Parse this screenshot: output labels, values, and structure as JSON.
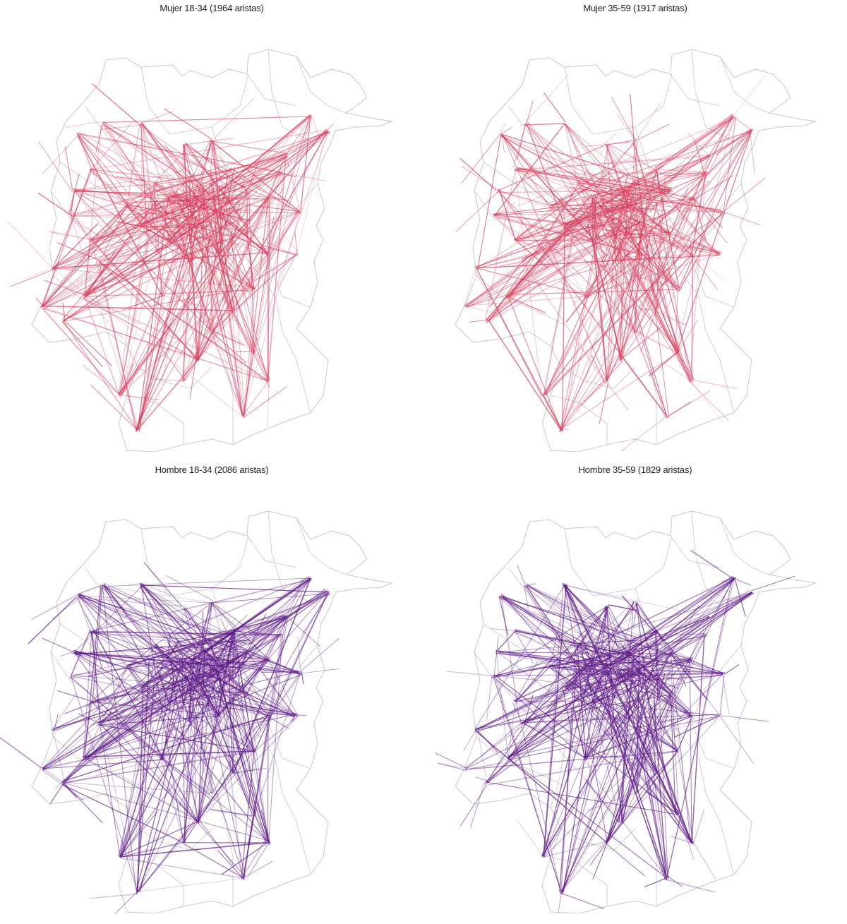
{
  "panels": [
    {
      "title": "Mujer 18-34 (1964 aristas)",
      "edge_color": "#d6405f",
      "edge_count": 1964
    },
    {
      "title": "Mujer 35-59 (1917 aristas)",
      "edge_color": "#d6405f",
      "edge_count": 1917
    },
    {
      "title": "Hombre 18-34 (2086 aristas)",
      "edge_color": "#5e1a86",
      "edge_count": 2086
    },
    {
      "title": "Hombre 35-59 (1829 aristas)",
      "edge_color": "#5e1a86",
      "edge_count": 1829
    }
  ],
  "boundary_color": "#c8c8c8"
}
